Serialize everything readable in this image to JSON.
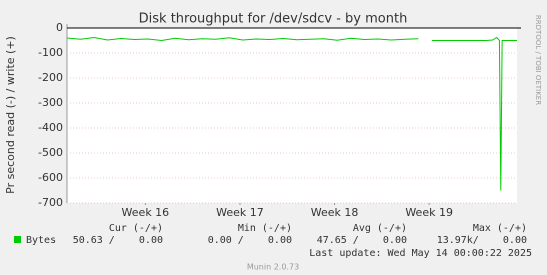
{
  "chart_data": {
    "type": "line",
    "title": "Disk throughput for /dev/sdcv - by month",
    "y_label": "Pr second read (-) / write (+)",
    "side_text": "RRDTOOL / TOBI OETIKER",
    "footer": "Munin 2.0.73",
    "last_update": "Last update: Wed May 14 00:00:22 2025",
    "xlim": [
      0,
      33.3
    ],
    "xticks": [
      {
        "value": 5.8,
        "label": "Week 16"
      },
      {
        "value": 12.8,
        "label": "Week 17"
      },
      {
        "value": 19.8,
        "label": "Week 18"
      },
      {
        "value": 26.8,
        "label": "Week 19"
      }
    ],
    "ylim": [
      -700,
      0
    ],
    "yticks": [
      0,
      -100,
      -200,
      -300,
      -400,
      -500,
      -600,
      -700
    ],
    "grid": true,
    "x": [
      0,
      1,
      2,
      3,
      4,
      5,
      6,
      7,
      8,
      9,
      10,
      11,
      12,
      13,
      14,
      15,
      16,
      17,
      18,
      19,
      20,
      21,
      22,
      23,
      24,
      25,
      26,
      26.7,
      27,
      28,
      29,
      30,
      31,
      31.5,
      31.8,
      32,
      32.1,
      32.2,
      33.3
    ],
    "series": [
      {
        "name": "Bytes",
        "color": "#00cc00",
        "values": [
          -40,
          -45,
          -38,
          -48,
          -42,
          -46,
          -44,
          -50,
          -41,
          -47,
          -43,
          -45,
          -39,
          -48,
          -44,
          -46,
          -42,
          -47,
          -45,
          -43,
          -49,
          -41,
          -46,
          -44,
          -48,
          -45,
          -43,
          null,
          -50,
          -50,
          -50,
          -50,
          -50,
          -48,
          -38,
          -50,
          -650,
          -50,
          -50
        ]
      }
    ],
    "legend_table": {
      "headers": [
        "Cur (-/+)",
        "Min (-/+)",
        "Avg (-/+)",
        "Max (-/+)"
      ],
      "row": [
        "50.63 /    0.00",
        "0.00 /    0.00",
        "47.65 /    0.00",
        "13.97k/    0.00"
      ]
    }
  }
}
